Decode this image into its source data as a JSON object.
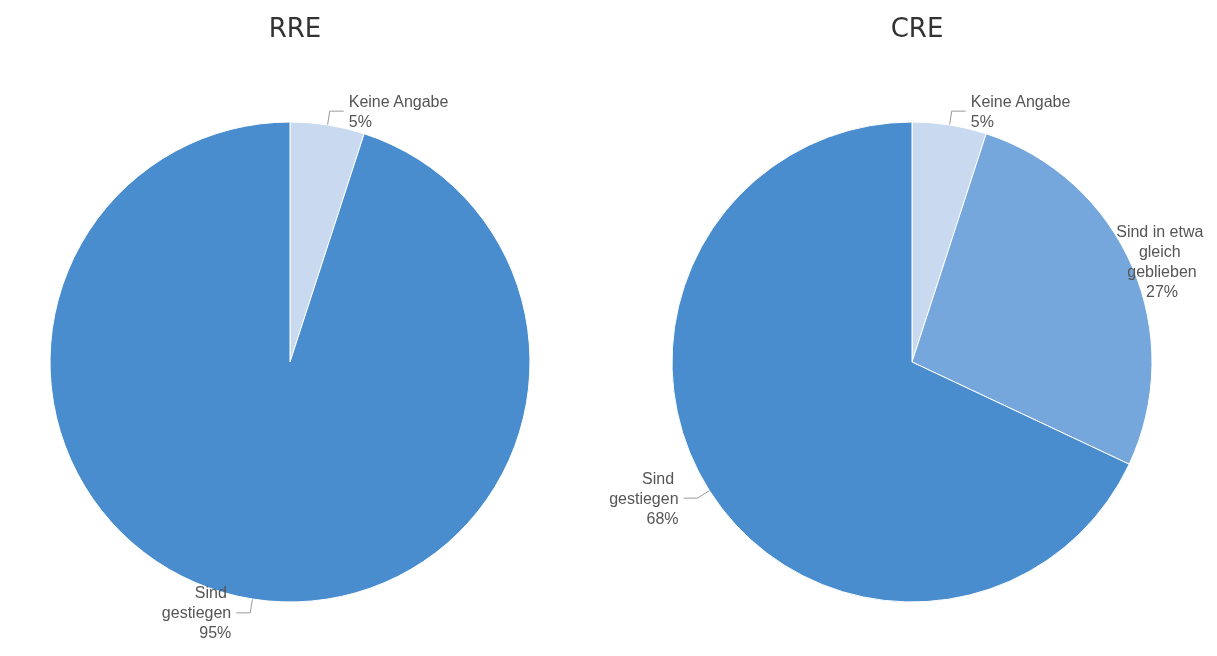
{
  "chart_data": [
    {
      "type": "pie",
      "title": "RRE",
      "categories": [
        "Keine Angabe",
        "Sind gestiegen"
      ],
      "values": [
        5,
        95
      ],
      "value_labels": [
        "5%",
        "95%"
      ],
      "colors": [
        "#c9d9ef",
        "#4a8dcf"
      ],
      "legend": false
    },
    {
      "type": "pie",
      "title": "CRE",
      "categories": [
        "Keine Angabe",
        "Sind in etwa gleich geblieben",
        "Sind gestiegen"
      ],
      "values": [
        5,
        27,
        68
      ],
      "value_labels": [
        "5%",
        "27%",
        "68%"
      ],
      "colors": [
        "#c9d9ef",
        "#75a7dc",
        "#4a8dcf"
      ],
      "legend": false
    }
  ]
}
